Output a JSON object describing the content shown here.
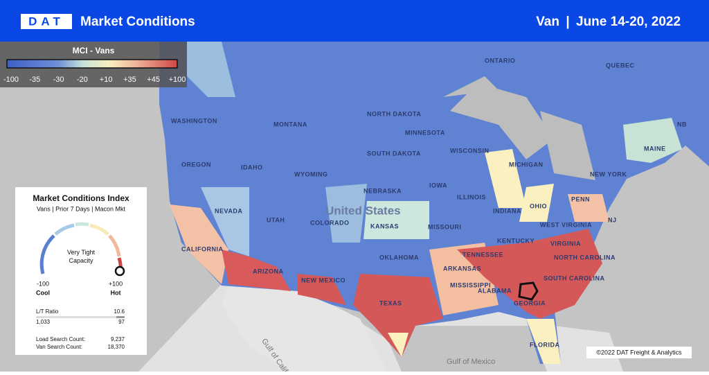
{
  "header": {
    "logo": "DAT",
    "title": "Market Conditions",
    "equipment": "Van",
    "separator": "|",
    "dates": "June 14-20, 2022"
  },
  "legend": {
    "title": "MCI - Vans",
    "ticks": [
      "-100",
      "-35",
      "-30",
      "-20",
      "+10",
      "+35",
      "+45",
      "+100"
    ]
  },
  "card": {
    "title": "Market Conditions Index",
    "subtitle": "Vans | Prior 7 Days | Macon Mkt",
    "status": "Very Tight Capacity",
    "min": "-100",
    "min_label": "Cool",
    "max": "+100",
    "max_label": "Hot",
    "ratio_label": "L/T Ratio",
    "ratio": "10.6",
    "loads": "1,033",
    "trucks": "97",
    "load_search_label": "Load Search Count:",
    "load_search": "9,237",
    "van_search_label": "Van Search Count:",
    "van_search": "18,370"
  },
  "labels": [
    "ONTARIO",
    "QUEBEC",
    "WASHINGTON",
    "MONTANA",
    "NORTH DAKOTA",
    "MINNESOTA",
    "OREGON",
    "IDAHO",
    "SOUTH DAKOTA",
    "WISCONSIN",
    "MICHIGAN",
    "WYOMING",
    "NEBRASKA",
    "IOWA",
    "NEVADA",
    "UTAH",
    "COLORADO",
    "United States",
    "KANSAS",
    "MISSOURI",
    "ILLINOIS",
    "INDIANA",
    "OHIO",
    "PENN",
    "NEW YORK",
    "MAINE",
    "NB",
    "NJ",
    "CALIFORNIA",
    "ARIZONA",
    "NEW MEXICO",
    "OKLAHOMA",
    "TEXAS",
    "ARKANSAS",
    "MISSISSIPPI",
    "ALABAMA",
    "GEORGIA",
    "TENNESSEE",
    "KENTUCKY",
    "WEST VIRGINIA",
    "VIRGINIA",
    "NORTH CAROLINA",
    "SOUTH CAROLINA",
    "FLORIDA",
    "Gulf of Mexico",
    "Gulf of California"
  ],
  "copyright": "©2022 DAT Freight & Analytics"
}
